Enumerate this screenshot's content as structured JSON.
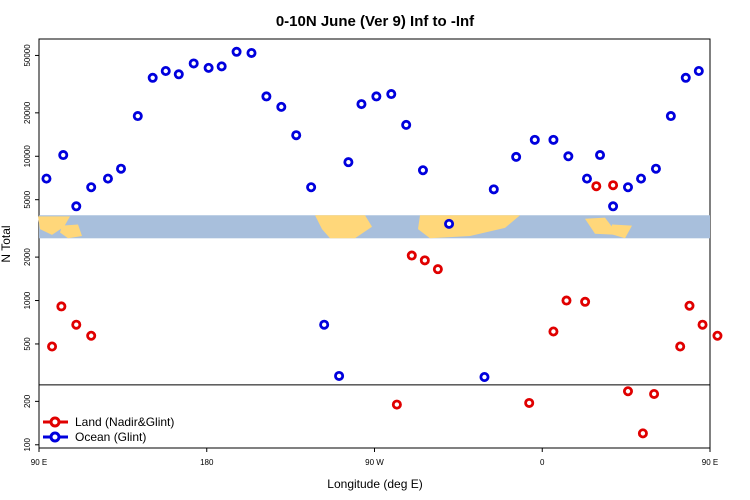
{
  "chart_data": {
    "type": "scatter",
    "title": "0-10N June (Ver 9)   Inf to -Inf",
    "xlabel": "Longitude (deg E)",
    "ylabel": "N Total",
    "y_scale": "log",
    "xlim": [
      90,
      450
    ],
    "ylim": [
      95,
      65000
    ],
    "x_ticks": [
      {
        "value": 90,
        "label": "90 E"
      },
      {
        "value": 180,
        "label": "180"
      },
      {
        "value": 270,
        "label": "90 W"
      },
      {
        "value": 360,
        "label": "0"
      },
      {
        "value": 450,
        "label": "90 E"
      },
      {
        "value": 540,
        "label": "180"
      }
    ],
    "y_ticks": [
      {
        "value": 100,
        "label": "100"
      },
      {
        "value": 200,
        "label": "200"
      },
      {
        "value": 500,
        "label": "500"
      },
      {
        "value": 1000,
        "label": "1000"
      },
      {
        "value": 2000,
        "label": "2000"
      },
      {
        "value": 5000,
        "label": "5000"
      },
      {
        "value": 10000,
        "label": "10000"
      },
      {
        "value": 20000,
        "label": "20000"
      },
      {
        "value": 50000,
        "label": "50000"
      }
    ],
    "legend_position": "bottom-left",
    "reference_line_y": 260,
    "map_band_y": [
      2700,
      3900
    ],
    "map_colors": {
      "ocean": "#a8bfdc",
      "land": "#ffd77a"
    },
    "series": [
      {
        "name": "Land (Nadir&Glint)",
        "color": "#e00000",
        "points": [
          [
            97,
            480
          ],
          [
            102,
            910
          ],
          [
            110,
            680
          ],
          [
            118,
            570
          ],
          [
            282,
            190
          ],
          [
            290,
            2050
          ],
          [
            297,
            1900
          ],
          [
            304,
            1650
          ],
          [
            353,
            195
          ],
          [
            366,
            610
          ],
          [
            373,
            1000
          ],
          [
            383,
            980
          ],
          [
            389,
            6200
          ],
          [
            398,
            6300
          ],
          [
            406,
            235
          ],
          [
            414,
            120
          ],
          [
            420,
            225
          ],
          [
            434,
            480
          ],
          [
            439,
            920
          ],
          [
            446,
            680
          ],
          [
            454,
            570
          ]
        ]
      },
      {
        "name": "Ocean (Glint)",
        "color": "#0000dd",
        "points": [
          [
            94,
            7000
          ],
          [
            103,
            10200
          ],
          [
            110,
            4500
          ],
          [
            118,
            6100
          ],
          [
            127,
            7000
          ],
          [
            134,
            8200
          ],
          [
            143,
            19000
          ],
          [
            151,
            35000
          ],
          [
            158,
            39000
          ],
          [
            165,
            37000
          ],
          [
            173,
            44000
          ],
          [
            181,
            41000
          ],
          [
            188,
            42000
          ],
          [
            196,
            53000
          ],
          [
            204,
            52000
          ],
          [
            212,
            26000
          ],
          [
            220,
            22000
          ],
          [
            228,
            14000
          ],
          [
            236,
            6100
          ],
          [
            243,
            680
          ],
          [
            251,
            300
          ],
          [
            256,
            9100
          ],
          [
            263,
            23000
          ],
          [
            271,
            26000
          ],
          [
            279,
            27000
          ],
          [
            287,
            16500
          ],
          [
            296,
            8000
          ],
          [
            310,
            3400
          ],
          [
            329,
            295
          ],
          [
            334,
            5900
          ],
          [
            346,
            9900
          ],
          [
            356,
            13000
          ],
          [
            366,
            13000
          ],
          [
            374,
            10000
          ],
          [
            384,
            7000
          ],
          [
            391,
            10200
          ],
          [
            398,
            4500
          ],
          [
            406,
            6100
          ],
          [
            413,
            7000
          ],
          [
            421,
            8200
          ],
          [
            429,
            19000
          ],
          [
            437,
            35000
          ],
          [
            444,
            39000
          ]
        ]
      }
    ]
  }
}
